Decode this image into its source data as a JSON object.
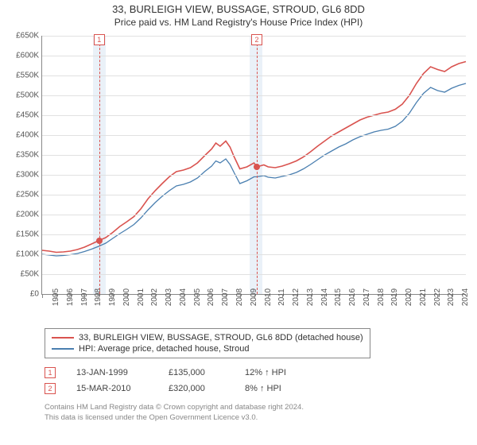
{
  "title": "33, BURLEIGH VIEW, BUSSAGE, STROUD, GL6 8DD",
  "subtitle": "Price paid vs. HM Land Registry's House Price Index (HPI)",
  "chart": {
    "type": "line",
    "background_color": "#ffffff",
    "grid_color": "#e1e1e1",
    "axis_color": "#888888",
    "label_fontsize": 10,
    "x": {
      "min": 1995,
      "max": 2025,
      "ticks": [
        1995,
        1996,
        1997,
        1998,
        1999,
        2000,
        2001,
        2002,
        2003,
        2004,
        2005,
        2006,
        2007,
        2008,
        2009,
        2010,
        2011,
        2012,
        2013,
        2014,
        2015,
        2016,
        2017,
        2018,
        2019,
        2020,
        2021,
        2022,
        2023,
        2024
      ]
    },
    "y": {
      "min": 0,
      "max": 650000,
      "tick_step": 50000,
      "prefix": "£",
      "ticks_labels": [
        "£0",
        "£50K",
        "£100K",
        "£150K",
        "£200K",
        "£250K",
        "£300K",
        "£350K",
        "£400K",
        "£450K",
        "£500K",
        "£550K",
        "£600K",
        "£650K"
      ]
    },
    "shaded_bands": [
      {
        "x_from": 1998.6,
        "x_to": 1999.5,
        "color": "#eaf1f8"
      },
      {
        "x_from": 2009.7,
        "x_to": 2010.6,
        "color": "#eaf1f8"
      }
    ],
    "event_lines": [
      {
        "x": 1999.04,
        "label": "1",
        "color": "#d9534f"
      },
      {
        "x": 2010.2,
        "label": "2",
        "color": "#d9534f"
      }
    ],
    "series": [
      {
        "name": "33, BURLEIGH VIEW, BUSSAGE, STROUD, GL6 8DD (detached house)",
        "color": "#d9534f",
        "line_width": 1.6,
        "points": [
          [
            1995.0,
            110000
          ],
          [
            1995.5,
            108000
          ],
          [
            1996.0,
            105000
          ],
          [
            1996.5,
            106000
          ],
          [
            1997.0,
            108000
          ],
          [
            1997.5,
            112000
          ],
          [
            1998.0,
            118000
          ],
          [
            1998.5,
            126000
          ],
          [
            1999.04,
            135000
          ],
          [
            1999.5,
            142000
          ],
          [
            2000.0,
            155000
          ],
          [
            2000.5,
            170000
          ],
          [
            2001.0,
            182000
          ],
          [
            2001.5,
            195000
          ],
          [
            2002.0,
            215000
          ],
          [
            2002.5,
            240000
          ],
          [
            2003.0,
            260000
          ],
          [
            2003.5,
            278000
          ],
          [
            2004.0,
            295000
          ],
          [
            2004.5,
            308000
          ],
          [
            2005.0,
            312000
          ],
          [
            2005.5,
            318000
          ],
          [
            2006.0,
            330000
          ],
          [
            2006.5,
            348000
          ],
          [
            2007.0,
            365000
          ],
          [
            2007.3,
            380000
          ],
          [
            2007.6,
            372000
          ],
          [
            2008.0,
            385000
          ],
          [
            2008.3,
            370000
          ],
          [
            2008.6,
            345000
          ],
          [
            2009.0,
            315000
          ],
          [
            2009.5,
            320000
          ],
          [
            2010.0,
            330000
          ],
          [
            2010.2,
            320000
          ],
          [
            2010.7,
            325000
          ],
          [
            2011.0,
            320000
          ],
          [
            2011.5,
            318000
          ],
          [
            2012.0,
            322000
          ],
          [
            2012.5,
            328000
          ],
          [
            2013.0,
            335000
          ],
          [
            2013.5,
            345000
          ],
          [
            2014.0,
            358000
          ],
          [
            2014.5,
            372000
          ],
          [
            2015.0,
            385000
          ],
          [
            2015.5,
            398000
          ],
          [
            2016.0,
            408000
          ],
          [
            2016.5,
            418000
          ],
          [
            2017.0,
            428000
          ],
          [
            2017.5,
            438000
          ],
          [
            2018.0,
            445000
          ],
          [
            2018.5,
            450000
          ],
          [
            2019.0,
            455000
          ],
          [
            2019.5,
            458000
          ],
          [
            2020.0,
            465000
          ],
          [
            2020.5,
            478000
          ],
          [
            2021.0,
            500000
          ],
          [
            2021.5,
            530000
          ],
          [
            2022.0,
            555000
          ],
          [
            2022.5,
            572000
          ],
          [
            2023.0,
            565000
          ],
          [
            2023.5,
            560000
          ],
          [
            2024.0,
            572000
          ],
          [
            2024.5,
            580000
          ],
          [
            2025.0,
            585000
          ]
        ],
        "markers": [
          {
            "x": 1999.04,
            "y": 135000
          },
          {
            "x": 2010.2,
            "y": 320000
          }
        ]
      },
      {
        "name": "HPI: Average price, detached house, Stroud",
        "color": "#4a7fb0",
        "line_width": 1.3,
        "points": [
          [
            1995.0,
            100000
          ],
          [
            1995.5,
            98000
          ],
          [
            1996.0,
            96000
          ],
          [
            1996.5,
            97000
          ],
          [
            1997.0,
            99000
          ],
          [
            1997.5,
            102000
          ],
          [
            1998.0,
            107000
          ],
          [
            1998.5,
            113000
          ],
          [
            1999.0,
            120000
          ],
          [
            1999.5,
            128000
          ],
          [
            2000.0,
            140000
          ],
          [
            2000.5,
            152000
          ],
          [
            2001.0,
            163000
          ],
          [
            2001.5,
            175000
          ],
          [
            2002.0,
            192000
          ],
          [
            2002.5,
            212000
          ],
          [
            2003.0,
            230000
          ],
          [
            2003.5,
            246000
          ],
          [
            2004.0,
            260000
          ],
          [
            2004.5,
            272000
          ],
          [
            2005.0,
            276000
          ],
          [
            2005.5,
            282000
          ],
          [
            2006.0,
            292000
          ],
          [
            2006.5,
            308000
          ],
          [
            2007.0,
            322000
          ],
          [
            2007.3,
            335000
          ],
          [
            2007.6,
            330000
          ],
          [
            2008.0,
            340000
          ],
          [
            2008.3,
            326000
          ],
          [
            2008.6,
            305000
          ],
          [
            2009.0,
            278000
          ],
          [
            2009.5,
            285000
          ],
          [
            2010.0,
            295000
          ],
          [
            2010.2,
            295000
          ],
          [
            2010.7,
            298000
          ],
          [
            2011.0,
            294000
          ],
          [
            2011.5,
            292000
          ],
          [
            2012.0,
            296000
          ],
          [
            2012.5,
            300000
          ],
          [
            2013.0,
            306000
          ],
          [
            2013.5,
            315000
          ],
          [
            2014.0,
            326000
          ],
          [
            2014.5,
            338000
          ],
          [
            2015.0,
            350000
          ],
          [
            2015.5,
            360000
          ],
          [
            2016.0,
            370000
          ],
          [
            2016.5,
            378000
          ],
          [
            2017.0,
            388000
          ],
          [
            2017.5,
            396000
          ],
          [
            2018.0,
            402000
          ],
          [
            2018.5,
            408000
          ],
          [
            2019.0,
            412000
          ],
          [
            2019.5,
            415000
          ],
          [
            2020.0,
            422000
          ],
          [
            2020.5,
            435000
          ],
          [
            2021.0,
            455000
          ],
          [
            2021.5,
            482000
          ],
          [
            2022.0,
            505000
          ],
          [
            2022.5,
            520000
          ],
          [
            2023.0,
            512000
          ],
          [
            2023.5,
            508000
          ],
          [
            2024.0,
            518000
          ],
          [
            2024.5,
            525000
          ],
          [
            2025.0,
            530000
          ]
        ]
      }
    ]
  },
  "legend": {
    "items": [
      {
        "color": "#d9534f",
        "label": "33, BURLEIGH VIEW, BUSSAGE, STROUD, GL6 8DD (detached house)"
      },
      {
        "color": "#4a7fb0",
        "label": "HPI: Average price, detached house, Stroud"
      }
    ]
  },
  "sales": [
    {
      "idx": "1",
      "date": "13-JAN-1999",
      "price": "£135,000",
      "delta": "12% ↑ HPI"
    },
    {
      "idx": "2",
      "date": "15-MAR-2010",
      "price": "£320,000",
      "delta": "8% ↑ HPI"
    }
  ],
  "footer_line1": "Contains HM Land Registry data © Crown copyright and database right 2024.",
  "footer_line2": "This data is licensed under the Open Government Licence v3.0."
}
